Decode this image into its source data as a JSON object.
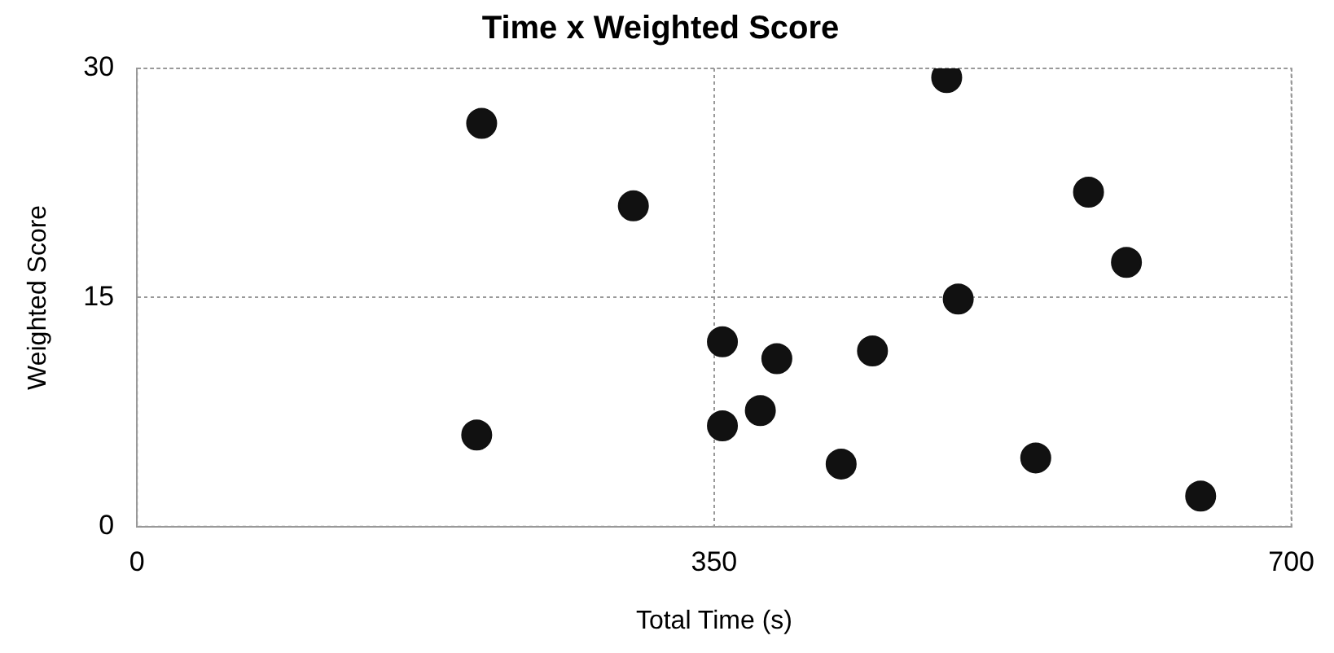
{
  "chart_data": {
    "type": "scatter",
    "title": "Time x Weighted Score",
    "xlabel": "Total Time (s)",
    "ylabel": "Weighted Score",
    "x": [
      209,
      301,
      206,
      491,
      577,
      600,
      498,
      355,
      388,
      446,
      378,
      355,
      427,
      545,
      645
    ],
    "series": [
      {
        "color": "#111111",
        "values": [
          26.4,
          21.0,
          6.0,
          29.4,
          21.9,
          17.3,
          14.9,
          12.1,
          11.0,
          11.5,
          7.6,
          6.6,
          4.1,
          4.5,
          2.0
        ]
      }
    ],
    "xlim": [
      0,
      700
    ],
    "xticks": [
      0,
      350,
      700
    ],
    "ylim": [
      0,
      30
    ],
    "yticks": [
      0,
      15,
      30
    ],
    "grid": true,
    "legend": false,
    "marker": "circle"
  }
}
